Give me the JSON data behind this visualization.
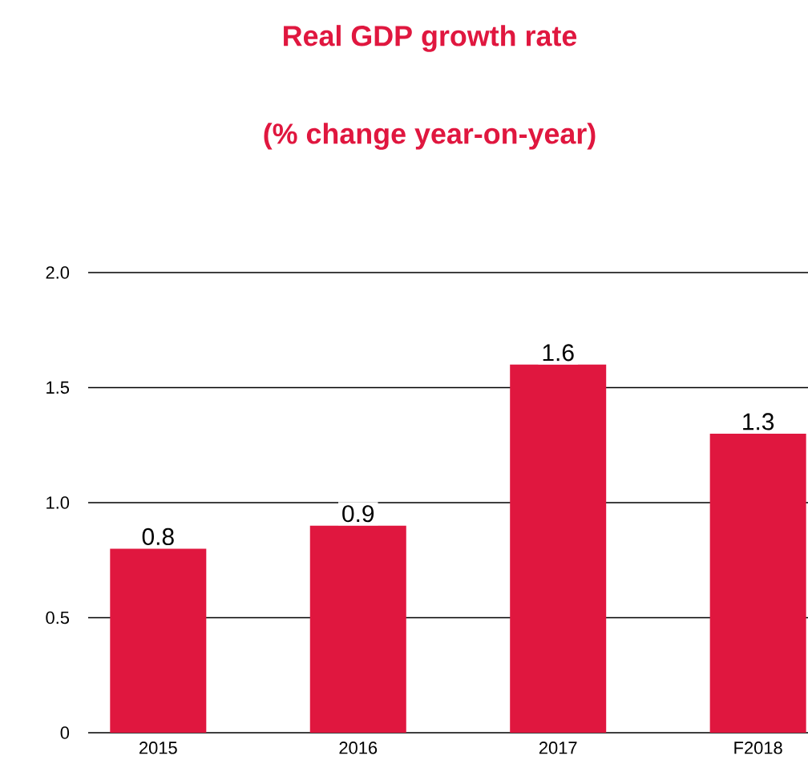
{
  "chart_data": {
    "type": "bar",
    "title": "Real GDP growth rate",
    "subtitle": "(% change year-on-year)",
    "categories": [
      "2015",
      "2016",
      "2017",
      "F2018"
    ],
    "values": [
      0.8,
      0.9,
      1.6,
      1.3
    ],
    "color": "#e0173f",
    "ylim": [
      0,
      2.0
    ],
    "yticks": [
      0,
      {
        "value": 0.5,
        "label": "0.5"
      },
      {
        "value": 1.0,
        "label": "1.0"
      },
      {
        "value": 1.5,
        "label": "1.5"
      },
      {
        "value": 2.0,
        "label": "2.0"
      }
    ],
    "grid": "y",
    "data_labels": true
  }
}
